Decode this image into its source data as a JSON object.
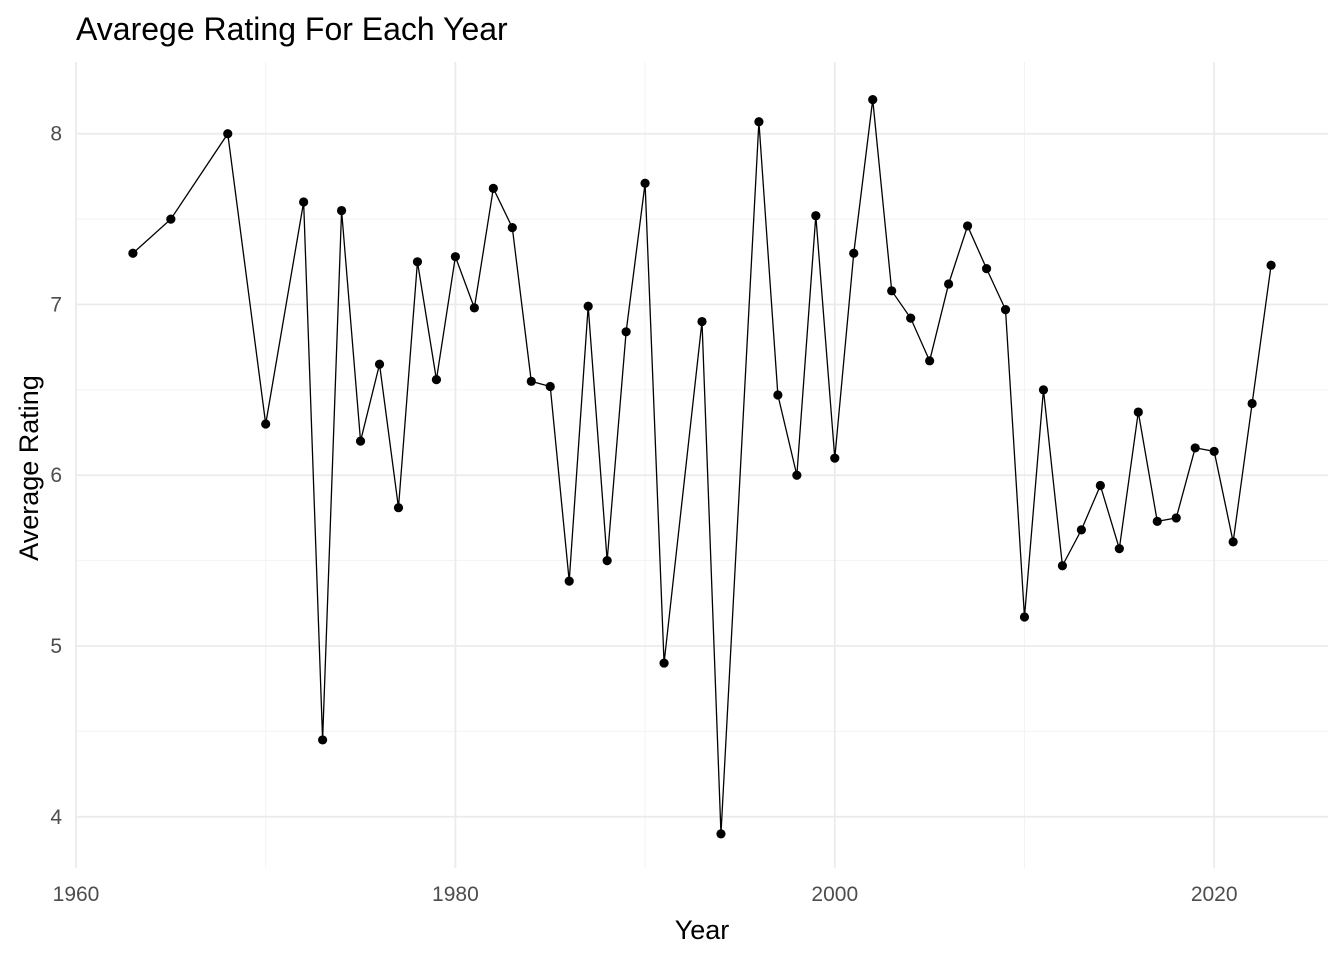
{
  "chart_data": {
    "type": "line",
    "title": "Avarege Rating For Each Year",
    "xlabel": "Year",
    "ylabel": "Average Rating",
    "xlim": [
      1960,
      2026
    ],
    "ylim": [
      3.7,
      8.42
    ],
    "x_ticks": [
      1960,
      1980,
      2000,
      2020
    ],
    "y_ticks": [
      4,
      5,
      6,
      7,
      8
    ],
    "x_tick_labels": [
      "1960",
      "1980",
      "2000",
      "2020"
    ],
    "y_tick_labels": [
      "4",
      "5",
      "6",
      "7",
      "8"
    ],
    "grid": true,
    "legend": "none",
    "colors": {
      "line": "#000000",
      "points": "#000000",
      "grid": "#ebebeb",
      "tick_text": "#4d4d4d"
    },
    "series": [
      {
        "x": [
          1963,
          1965,
          1968,
          1970,
          1972,
          1973,
          1974,
          1975,
          1976,
          1977,
          1978,
          1979,
          1980,
          1981,
          1982,
          1983,
          1984,
          1985,
          1986,
          1987,
          1988,
          1989,
          1990,
          1991,
          1993,
          1994,
          1996,
          1997,
          1998,
          1999,
          2000,
          2001,
          2002,
          2003,
          2004,
          2005,
          2006,
          2007,
          2008,
          2009,
          2010,
          2011,
          2012,
          2013,
          2014,
          2015,
          2016,
          2017,
          2018,
          2019,
          2020,
          2021,
          2022,
          2023
        ],
        "values": [
          7.3,
          7.5,
          8.0,
          6.3,
          7.6,
          4.45,
          7.55,
          6.2,
          6.65,
          5.81,
          7.25,
          6.56,
          7.28,
          6.98,
          7.68,
          7.45,
          6.55,
          6.52,
          5.38,
          6.99,
          5.5,
          6.84,
          7.71,
          4.9,
          6.9,
          3.9,
          8.07,
          6.47,
          6.0,
          7.52,
          6.1,
          7.3,
          8.2,
          7.08,
          6.92,
          6.67,
          7.12,
          7.46,
          7.21,
          6.97,
          5.17,
          6.5,
          5.47,
          5.68,
          5.94,
          5.57,
          6.37,
          5.73,
          5.75,
          6.16,
          6.14,
          5.61,
          6.42,
          7.23
        ]
      }
    ]
  }
}
